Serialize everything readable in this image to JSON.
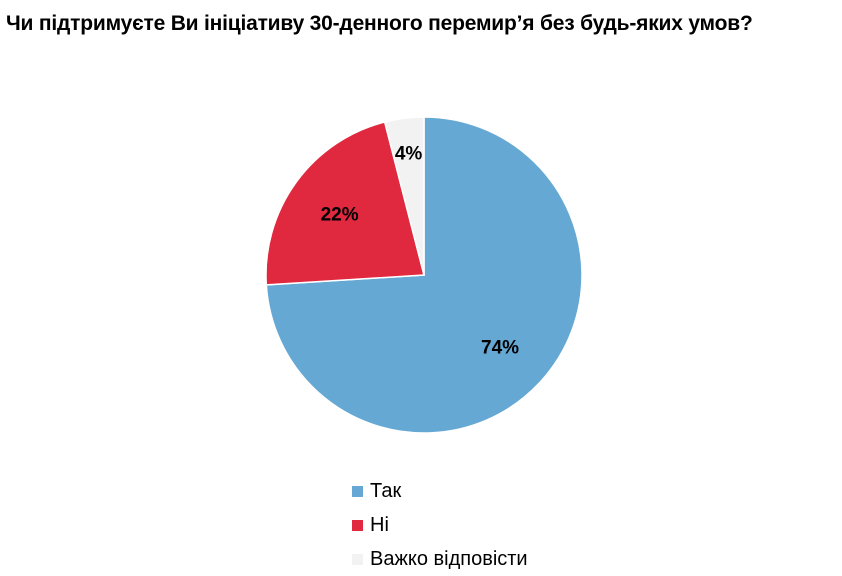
{
  "title": "Чи підтримуєте Ви ініціативу 30-денного перемир’я без будь-яких умов?",
  "chart_data": {
    "type": "pie",
    "title": "Чи підтримуєте Ви ініціативу 30-денного перемир’я без будь-яких умов?",
    "categories": [
      "Так",
      "Ні",
      "Важко відповісти"
    ],
    "values": [
      74,
      22,
      4
    ],
    "data_labels": [
      "74%",
      "22%",
      "4%"
    ],
    "colors": [
      "#66a8d4",
      "#e0283f",
      "#f2f2f2"
    ],
    "start_angle": "12 o'clock",
    "direction": "clockwise",
    "legend": "bottom"
  }
}
